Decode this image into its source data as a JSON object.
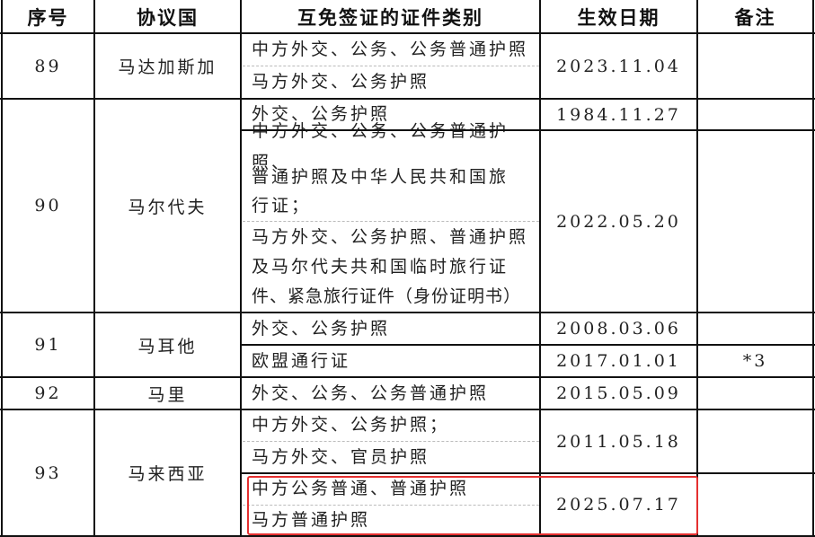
{
  "headers": [
    "序号",
    "协议国",
    "互免签证的证件类别",
    "生效日期",
    "备注"
  ],
  "rows": [
    {
      "no": "89",
      "country": "马达加斯加",
      "entries": [
        {
          "lines": [
            "中方外交、公务、公务普通护照",
            "马方外交、公务护照"
          ],
          "date": "2023.11.04",
          "note": ""
        }
      ]
    },
    {
      "no": "90",
      "country": "马尔代夫",
      "entries": [
        {
          "lines": [
            "外交、公务护照"
          ],
          "date": "1984.11.27",
          "note": ""
        },
        {
          "lines": [
            "中方外交、公务、公务普通护照、",
            "普通护照及中华人民共和国旅",
            "行证；",
            "马方外交、公务护照、普通护照",
            "及马尔代夫共和国临时旅行证",
            "件、紧急旅行证件（身份证明书）"
          ],
          "date": "2022.05.20",
          "note": ""
        }
      ]
    },
    {
      "no": "91",
      "country": "马耳他",
      "entries": [
        {
          "lines": [
            "外交、公务护照"
          ],
          "date": "2008.03.06",
          "note": ""
        },
        {
          "lines": [
            "欧盟通行证"
          ],
          "date": "2017.01.01",
          "note": "*3"
        }
      ]
    },
    {
      "no": "92",
      "country": "马里",
      "entries": [
        {
          "lines": [
            "外交、公务、公务普通护照"
          ],
          "date": "2015.05.09",
          "note": ""
        }
      ]
    },
    {
      "no": "93",
      "country": "马来西亚",
      "entries": [
        {
          "lines": [
            "中方外交、公务护照；",
            "马方外交、官员护照"
          ],
          "date": "2011.05.18",
          "note": ""
        },
        {
          "lines": [
            "中方公务普通、普通护照",
            "马方普通护照"
          ],
          "date": "2025.07.17",
          "note": ""
        }
      ]
    }
  ],
  "highlight_color": "#e53030"
}
